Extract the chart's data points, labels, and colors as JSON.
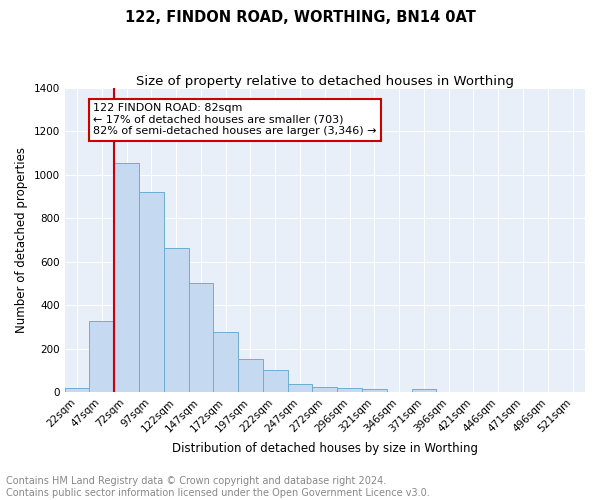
{
  "title": "122, FINDON ROAD, WORTHING, BN14 0AT",
  "subtitle": "Size of property relative to detached houses in Worthing",
  "xlabel": "Distribution of detached houses by size in Worthing",
  "ylabel": "Number of detached properties",
  "footnote": "Contains HM Land Registry data © Crown copyright and database right 2024.\nContains public sector information licensed under the Open Government Licence v3.0.",
  "bar_labels": [
    "22sqm",
    "47sqm",
    "72sqm",
    "97sqm",
    "122sqm",
    "147sqm",
    "172sqm",
    "197sqm",
    "222sqm",
    "247sqm",
    "272sqm",
    "296sqm",
    "321sqm",
    "346sqm",
    "371sqm",
    "396sqm",
    "421sqm",
    "446sqm",
    "471sqm",
    "496sqm",
    "521sqm"
  ],
  "bar_values": [
    20,
    325,
    1055,
    920,
    665,
    500,
    275,
    150,
    100,
    35,
    25,
    20,
    15,
    0,
    12,
    0,
    0,
    0,
    0,
    0,
    0
  ],
  "bar_color": "#c5d9f0",
  "bar_edge_color": "#6baed6",
  "annotation_text": "122 FINDON ROAD: 82sqm\n← 17% of detached houses are smaller (703)\n82% of semi-detached houses are larger (3,346) →",
  "annotation_box_color": "#ffffff",
  "annotation_box_edge": "#cc0000",
  "red_line_bar_index": 2,
  "ylim": [
    0,
    1400
  ],
  "yticks": [
    0,
    200,
    400,
    600,
    800,
    1000,
    1200,
    1400
  ],
  "plot_background": "#e8eff8",
  "grid_color": "#ffffff",
  "title_fontsize": 10.5,
  "subtitle_fontsize": 9.5,
  "axis_label_fontsize": 8.5,
  "tick_fontsize": 7.5,
  "footnote_fontsize": 7,
  "annotation_fontsize": 8
}
